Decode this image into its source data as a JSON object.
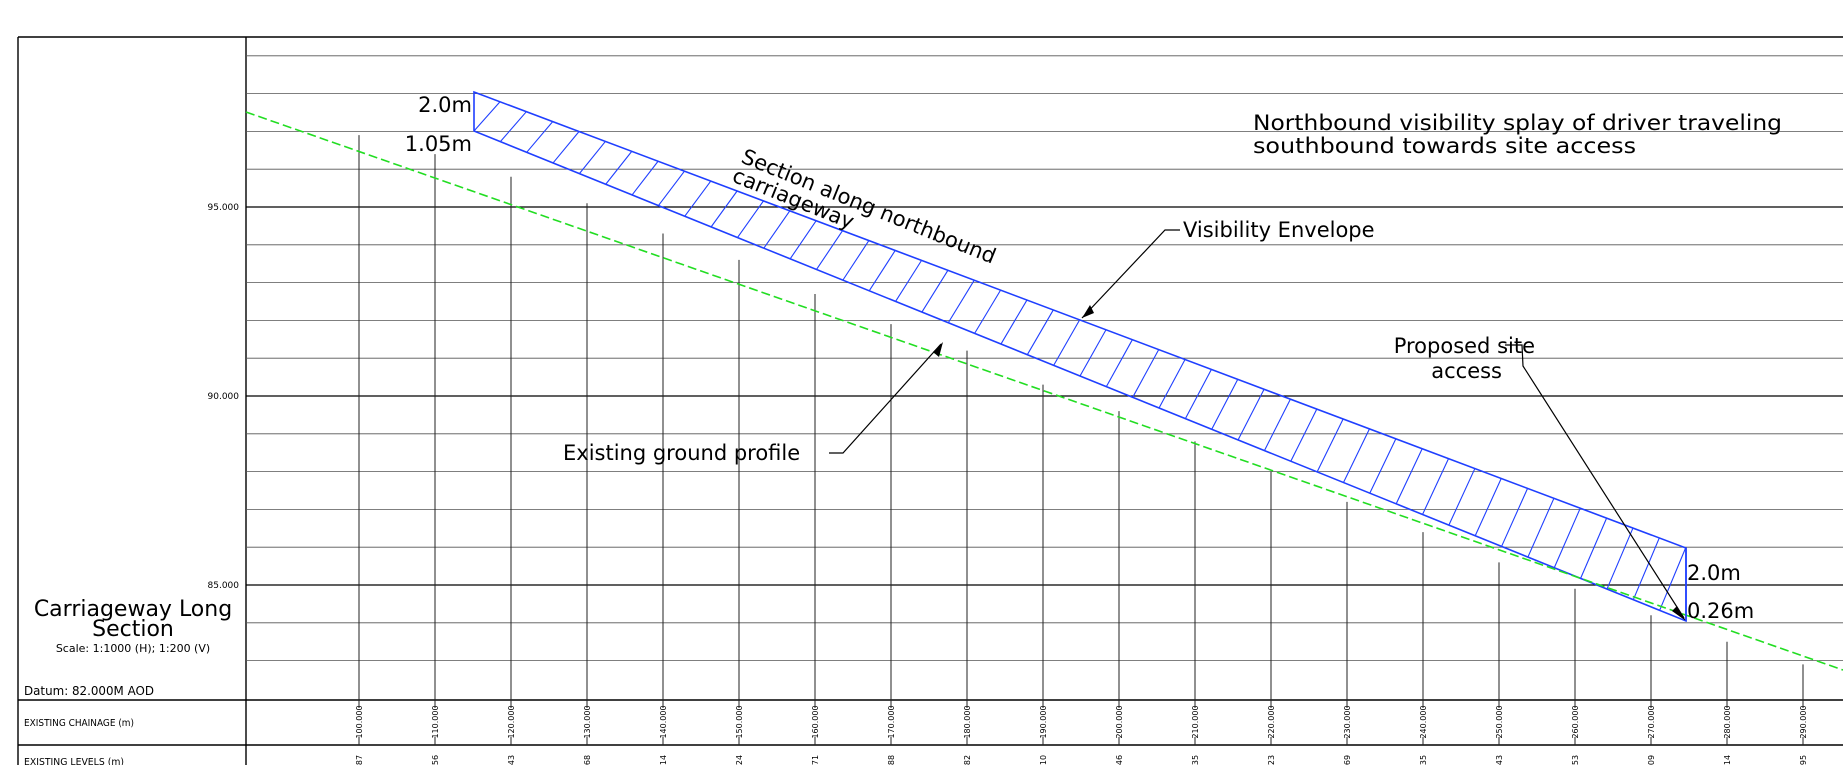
{
  "panel": {
    "title_line1": "Carriageway Long",
    "title_line2": "Section",
    "scale": "Scale: 1:1000 (H); 1:200 (V)",
    "datum": "Datum: 82.000M AOD"
  },
  "rows": {
    "chainage_label": "EXISTING CHAINAGE (m)",
    "levels_label": "EXISTING LEVELS (m)"
  },
  "y_axis": {
    "major_labels": [
      "95.000",
      "90.000",
      "85.000"
    ]
  },
  "annotations": {
    "splay_title_line1": "Northbound visibility splay of driver traveling",
    "splay_title_line2": "southbound towards site access",
    "section_line1": "Section along northbound",
    "section_line2": "carriageway",
    "envelope": "Visibility Envelope",
    "ground": "Existing ground profile",
    "site_access_line1": "Proposed site",
    "site_access_line2": "access",
    "start_top": "2.0m",
    "start_bottom": "1.05m",
    "end_top": "2.0m",
    "end_bottom": "0.26m"
  },
  "chainages": [
    "100.000",
    "110.000",
    "120.000",
    "130.000",
    "140.000",
    "150.000",
    "160.000",
    "170.000",
    "180.000",
    "190.000",
    "200.000",
    "210.000",
    "220.000",
    "230.000",
    "240.000",
    "250.000",
    "260.000",
    "270.000",
    "280.000",
    "290.000"
  ],
  "level_fragments": [
    "87",
    "56",
    "43",
    "68",
    "14",
    "24",
    "71",
    "88",
    "82",
    "10",
    "46",
    "35",
    "23",
    "69",
    "35",
    "43",
    "53",
    "09",
    "14",
    "95"
  ],
  "colors": {
    "envelope": "#1f3fff",
    "ground": "#22dd22",
    "frame": "#000000",
    "grid": "#555555"
  },
  "chart_data": {
    "type": "line",
    "x_label": "EXISTING CHAINAGE (m)",
    "y_ticks": [
      95,
      90,
      85
    ],
    "series": [
      {
        "name": "Existing ground profile",
        "x": [
          100,
          110,
          120,
          130,
          140,
          150,
          160,
          170,
          180,
          190,
          200,
          210,
          220,
          230,
          240,
          250,
          260,
          270,
          280,
          290
        ],
        "y": [
          96.9,
          96.4,
          95.8,
          95.1,
          94.3,
          93.6,
          92.7,
          91.9,
          91.2,
          90.3,
          89.6,
          88.8,
          88.0,
          87.2,
          86.4,
          85.6,
          84.9,
          84.2,
          83.5,
          82.9
        ]
      }
    ]
  }
}
